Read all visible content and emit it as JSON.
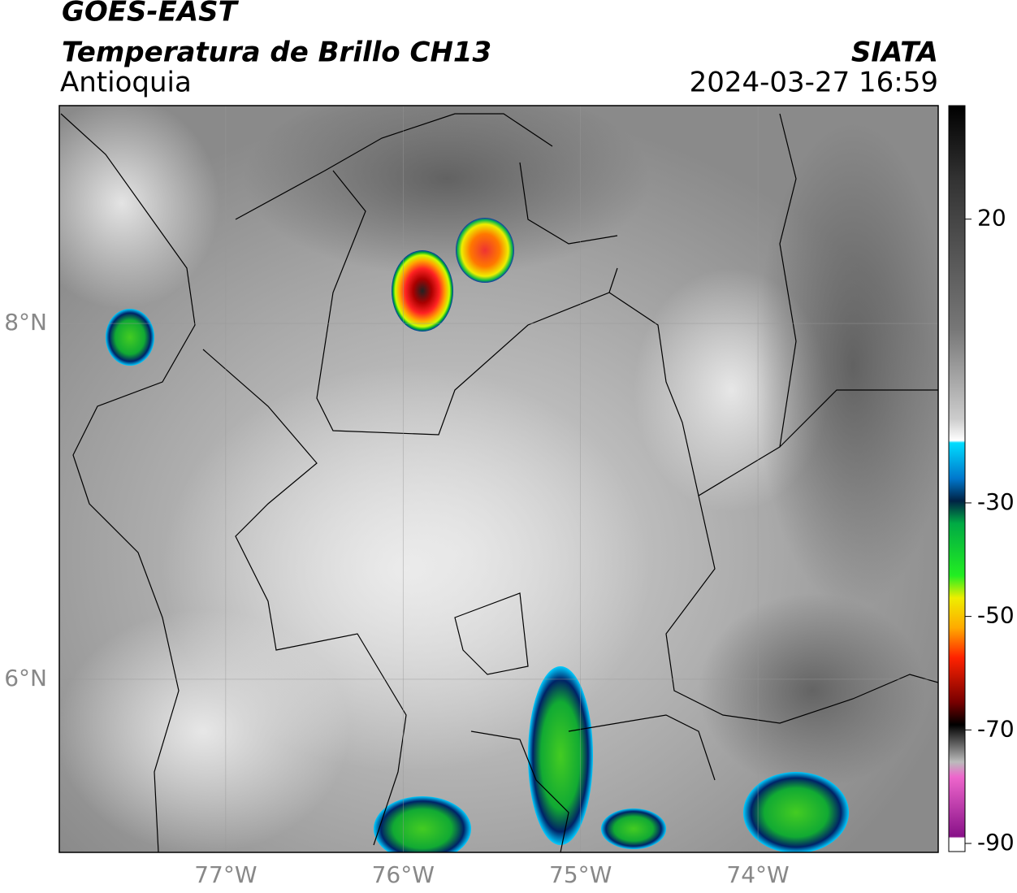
{
  "header": {
    "title": "GOES-EAST",
    "subtitle": "Temperatura de Brillo CH13",
    "region": "Antioquia",
    "source": "SIATA",
    "datetime": "2024-03-27 16:59"
  },
  "map": {
    "xlim": [
      -77.938,
      -72.984
    ],
    "ylim": [
      5.027,
      9.224
    ],
    "xticks": [
      {
        "value": -77,
        "label": "77°W"
      },
      {
        "value": -76,
        "label": "76°W"
      },
      {
        "value": -75,
        "label": "75°W"
      },
      {
        "value": -74,
        "label": "74°W"
      }
    ],
    "yticks": [
      {
        "value": 8,
        "label": "8°N"
      },
      {
        "value": 6,
        "label": "6°N"
      }
    ],
    "grid": true
  },
  "colorbar": {
    "clim": [
      -90,
      40
    ],
    "ticks": [
      20,
      -30,
      -50,
      -70,
      -90
    ]
  }
}
